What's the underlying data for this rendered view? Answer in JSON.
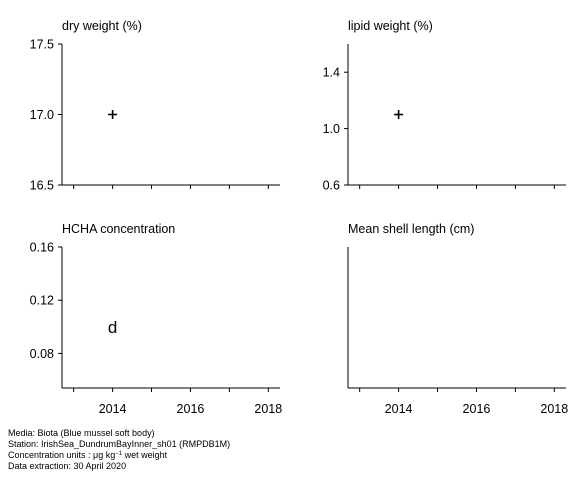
{
  "chart_data": [
    {
      "type": "scatter",
      "title": "dry weight (%)",
      "ylim": [
        16.5,
        17.5
      ],
      "yticks": [
        "16.5",
        "17.0",
        "17.5"
      ],
      "xlim": [
        2012.7,
        2018.3
      ],
      "xticks": [
        "2014",
        "2016",
        "2018"
      ],
      "show_xtick_labels": false,
      "points": [
        {
          "x": 2014,
          "y": 17.0,
          "marker": "+"
        }
      ]
    },
    {
      "type": "scatter",
      "title": "lipid weight (%)",
      "ylim": [
        0.6,
        1.6
      ],
      "yticks": [
        "0.6",
        "1.0",
        "1.4"
      ],
      "xlim": [
        2012.7,
        2018.3
      ],
      "xticks": [
        "2014",
        "2016",
        "2018"
      ],
      "show_xtick_labels": false,
      "points": [
        {
          "x": 2014,
          "y": 1.1,
          "marker": "+"
        }
      ]
    },
    {
      "type": "scatter",
      "title": "HCHA concentration",
      "ylim": [
        0.054,
        0.16
      ],
      "yticks": [
        "0.08",
        "0.12",
        "0.16"
      ],
      "xlim": [
        2012.7,
        2018.3
      ],
      "xticks": [
        "2014",
        "2016",
        "2018"
      ],
      "show_xtick_labels": true,
      "points": [
        {
          "x": 2014,
          "y": 0.1,
          "marker": "d"
        }
      ]
    },
    {
      "type": "scatter",
      "title": "Mean shell length (cm)",
      "ylim": [
        0,
        1
      ],
      "yticks": [],
      "xlim": [
        2012.7,
        2018.3
      ],
      "xticks": [
        "2014",
        "2016",
        "2018"
      ],
      "show_xtick_labels": true,
      "points": []
    }
  ],
  "footer": {
    "media": "Media: Biota (Blue mussel soft body)",
    "station": "Station: IrishSea_DundrumBayInner_sh01 (RMPDB1M)",
    "units_prefix": "Concentration units : μg kg",
    "units_exp": "−1",
    "units_suffix": " wet weight",
    "extraction": "Data extraction: 30 April 2020"
  }
}
